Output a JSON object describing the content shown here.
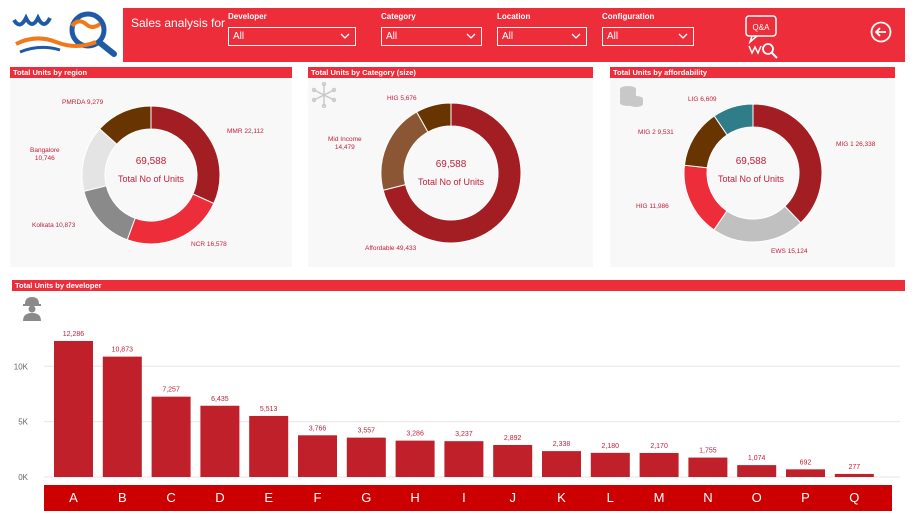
{
  "header": {
    "title": "Sales analysis for",
    "filters": [
      {
        "label": "Developer",
        "value": "All"
      },
      {
        "label": "Category",
        "value": "All"
      },
      {
        "label": "Location",
        "value": "All"
      },
      {
        "label": "Configuration",
        "value": "All"
      }
    ],
    "qa_label": "Q&A",
    "icons": [
      "logo",
      "qa-icon",
      "back-arrow-icon"
    ]
  },
  "colors": {
    "accent": "#ee2d3b",
    "dark_red": "#a31e22",
    "red": "#ee2d3b",
    "brown": "#683500",
    "medium_brown": "#8b5634",
    "light_gray": "#e4e4e4",
    "gray": "#8a8a8a",
    "silver": "#c0c0c0",
    "teal": "#2e7d88",
    "axis_bar": "#cc0000"
  },
  "panels": {
    "region": {
      "title": "Total Units by region",
      "center_value": "69,588",
      "center_label": "Total No of Units"
    },
    "category": {
      "title": "Total Units by Category (size)",
      "center_value": "69,588",
      "center_label": "Total No of Units"
    },
    "affordability": {
      "title": "Total Units by affordability",
      "center_value": "69,588",
      "center_label": "Total No of Units"
    },
    "developer": {
      "title": "Total Units by developer"
    }
  },
  "chart_data": [
    {
      "type": "pie",
      "title": "Total Units by region",
      "slices": [
        {
          "label": "MMR",
          "value": 22112,
          "text": "MMR 22,112",
          "color": "#a31e22"
        },
        {
          "label": "NCR",
          "value": 16578,
          "text": "NCR 16,578",
          "color": "#ee2d3b"
        },
        {
          "label": "Kolkata",
          "value": 10873,
          "text": "Kolkata 10,873",
          "color": "#8a8a8a"
        },
        {
          "label": "Bangalore",
          "value": 10746,
          "text": "Bangalore\n10,746",
          "color": "#e4e4e4"
        },
        {
          "label": "PMRDA",
          "value": 9279,
          "text": "PMRDA 9,279",
          "color": "#683500"
        }
      ]
    },
    {
      "type": "pie",
      "title": "Total Units by Category (size)",
      "slices": [
        {
          "label": "Affordable",
          "value": 49433,
          "text": "Affordable 49,433",
          "color": "#a31e22"
        },
        {
          "label": "Mid Income",
          "value": 14479,
          "text": "Mid Income\n14,479",
          "color": "#8b5634"
        },
        {
          "label": "HIG",
          "value": 5676,
          "text": "HIG 5,676",
          "color": "#683500"
        }
      ]
    },
    {
      "type": "pie",
      "title": "Total Units by affordability",
      "slices": [
        {
          "label": "MIG 1",
          "value": 26338,
          "text": "MIG 1 26,338",
          "color": "#a31e22"
        },
        {
          "label": "EWS",
          "value": 15124,
          "text": "EWS 15,124",
          "color": "#c0c0c0"
        },
        {
          "label": "HIG",
          "value": 11986,
          "text": "HIG 11,986",
          "color": "#ee2d3b"
        },
        {
          "label": "MIG 2",
          "value": 9531,
          "text": "MIG 2 9,531",
          "color": "#683500"
        },
        {
          "label": "LIG",
          "value": 6609,
          "text": "LIG 6,609",
          "color": "#2e7d88"
        }
      ]
    },
    {
      "type": "bar",
      "title": "Total Units by developer",
      "categories": [
        "A",
        "B",
        "C",
        "D",
        "E",
        "F",
        "G",
        "H",
        "I",
        "J",
        "K",
        "L",
        "M",
        "N",
        "O",
        "P",
        "Q"
      ],
      "values": [
        12286,
        10873,
        7257,
        6435,
        5513,
        3766,
        3557,
        3286,
        3237,
        2892,
        2338,
        2180,
        2170,
        1755,
        1074,
        692,
        277
      ],
      "value_labels": [
        "12,286",
        "10,873",
        "7,257",
        "6,435",
        "5,513",
        "3,766",
        "3,557",
        "3,286",
        "3,237",
        "2,892",
        "2,338",
        "2,180",
        "2,170",
        "1,755",
        "1,074",
        "692",
        "277"
      ],
      "yticks": [
        {
          "value": 0,
          "label": "0K"
        },
        {
          "value": 5000,
          "label": "5K"
        },
        {
          "value": 10000,
          "label": "10K"
        }
      ],
      "ylim": [
        0,
        14000
      ],
      "grid": true,
      "color": "#c0202a"
    }
  ]
}
